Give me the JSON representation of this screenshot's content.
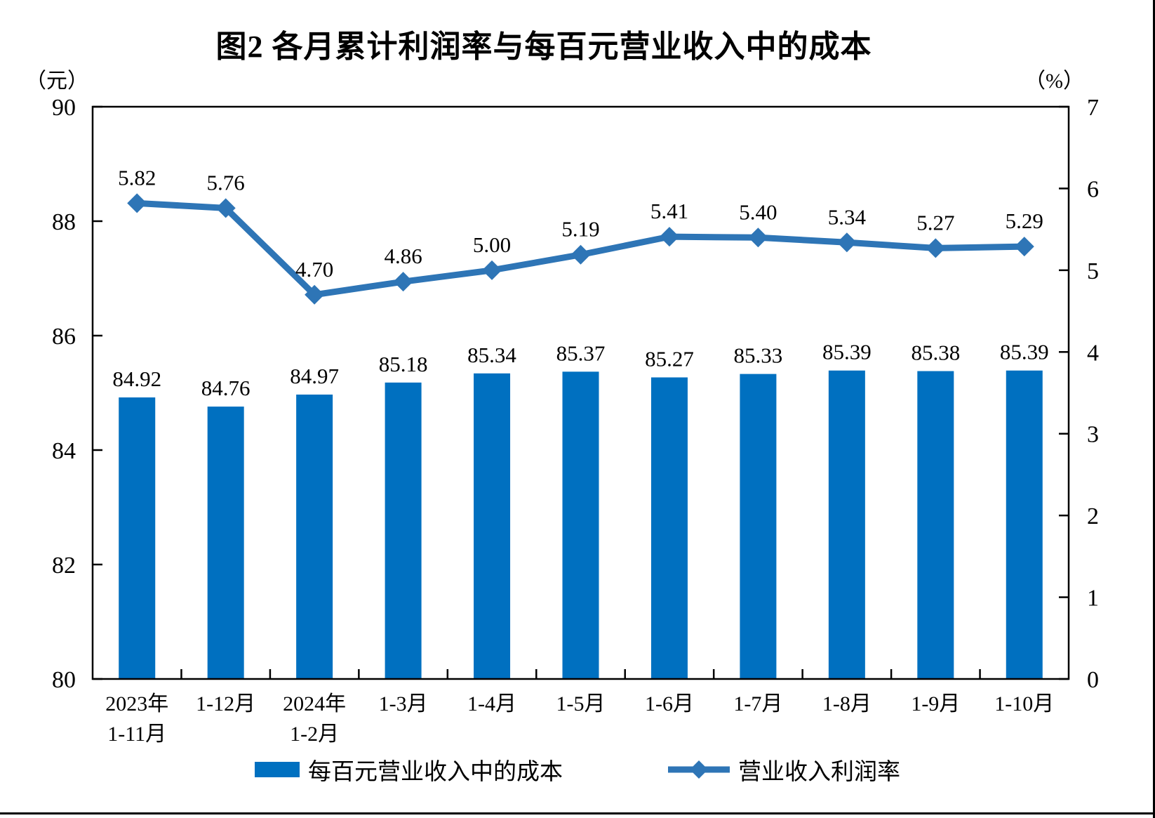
{
  "chart_data": {
    "type": "bar+line combo, dual axis",
    "title": "图2  各月累计利润率与每百元营业收入中的成本",
    "categories": [
      "2023年\n1-11月",
      "1-12月",
      "2024年\n1-2月",
      "1-3月",
      "1-4月",
      "1-5月",
      "1-6月",
      "1-7月",
      "1-8月",
      "1-9月",
      "1-10月"
    ],
    "series": [
      {
        "name": "每百元营业收入中的成本",
        "type": "bar",
        "axis": "left",
        "color": "#0070C0",
        "values": [
          84.92,
          84.76,
          84.97,
          85.18,
          85.34,
          85.37,
          85.27,
          85.33,
          85.39,
          85.38,
          85.39
        ]
      },
      {
        "name": "营业收入利润率",
        "type": "line",
        "axis": "right",
        "color": "#2E75B6",
        "values": [
          5.82,
          5.76,
          4.7,
          4.86,
          5.0,
          5.19,
          5.41,
          5.4,
          5.34,
          5.27,
          5.29
        ]
      }
    ],
    "left_axis": {
      "unit": "（元）",
      "min": 80,
      "max": 90,
      "ticks": [
        "90",
        "88",
        "86",
        "84",
        "82",
        "80"
      ]
    },
    "right_axis": {
      "unit": "（%）",
      "min": 0,
      "max": 7,
      "ticks": [
        "7",
        "6",
        "5",
        "4",
        "3",
        "2",
        "1",
        "0"
      ]
    },
    "grid": false,
    "legend_position": "bottom",
    "value_label_decimals": 2
  }
}
